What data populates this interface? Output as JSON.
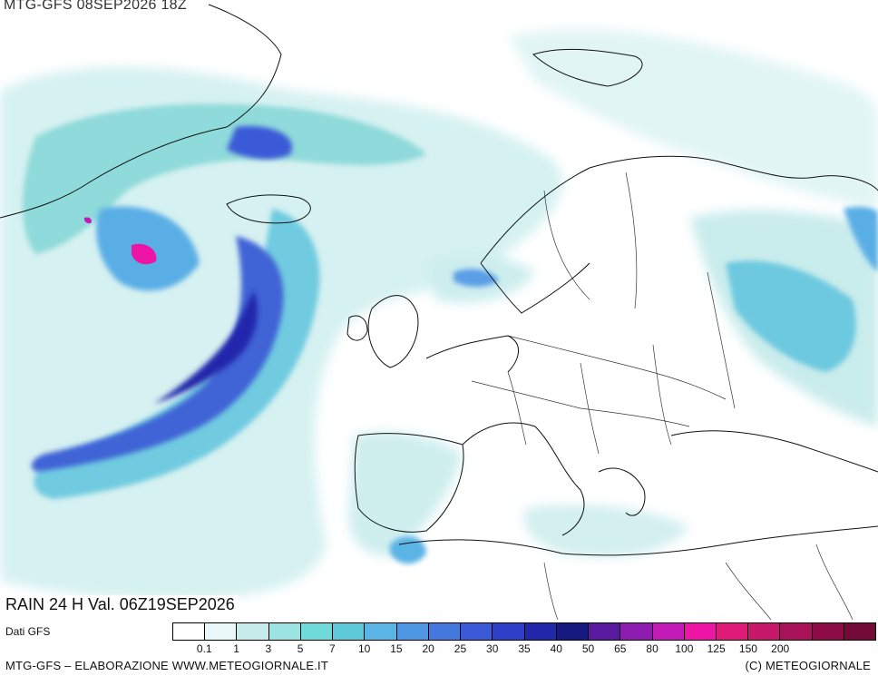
{
  "header": {
    "run": "MTG-GFS 08SEP2026 18Z"
  },
  "field": {
    "title": "RAIN 24 H Val. 06Z19SEP2026"
  },
  "legend": {
    "source": "Dati GFS",
    "classes": [
      {
        "color": "#ffffff"
      },
      {
        "color": "#e8f7f7"
      },
      {
        "color": "#c6ecec"
      },
      {
        "color": "#9ce4e4"
      },
      {
        "color": "#70dada"
      },
      {
        "color": "#5ec9d8"
      },
      {
        "color": "#5ab4e6"
      },
      {
        "color": "#4f96e2"
      },
      {
        "color": "#4578dc"
      },
      {
        "color": "#3b5ad8"
      },
      {
        "color": "#2f40c8"
      },
      {
        "color": "#2228ac"
      },
      {
        "color": "#161a80"
      },
      {
        "color": "#5a1aa0"
      },
      {
        "color": "#8e1cb0"
      },
      {
        "color": "#c41ab8"
      },
      {
        "color": "#ee14a6"
      },
      {
        "color": "#e01c78"
      },
      {
        "color": "#c8186c"
      },
      {
        "color": "#a81258"
      },
      {
        "color": "#8e0c46"
      },
      {
        "color": "#740a38"
      }
    ],
    "ticks": [
      "0.1",
      "1",
      "3",
      "5",
      "7",
      "10",
      "15",
      "20",
      "25",
      "30",
      "35",
      "40",
      "50",
      "65",
      "80",
      "100",
      "125",
      "150",
      "200"
    ]
  },
  "footer": {
    "left": "MTG-GFS – ELABORAZIONE WWW.METEOGIORNALE.IT",
    "right": "(C) METEOGIORNALE"
  }
}
